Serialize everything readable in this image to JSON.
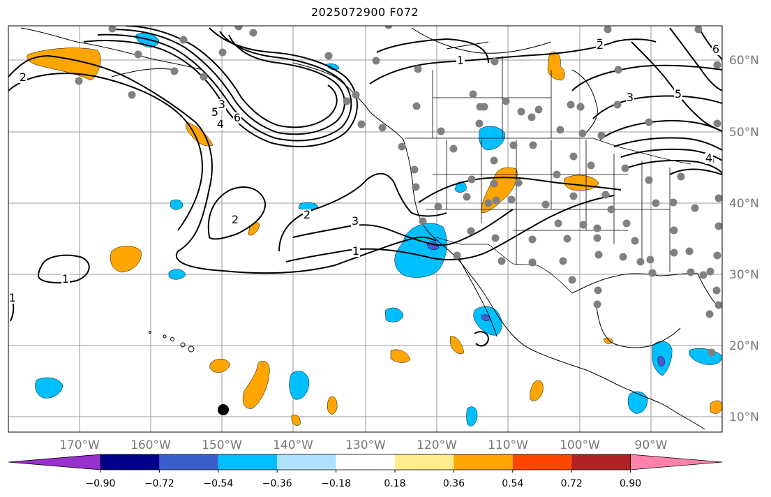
{
  "title": "2025072900 F072",
  "map": {
    "longitude_labels": [
      "170°W",
      "160°W",
      "150°W",
      "140°W",
      "130°W",
      "120°W",
      "110°W",
      "100°W",
      "90°W"
    ],
    "latitude_labels": [
      "60°N",
      "50°N",
      "40°N",
      "30°N",
      "20°N",
      "10°N"
    ],
    "contour_labels": [
      {
        "text": "2"
      },
      {
        "text": "1"
      },
      {
        "text": "1"
      },
      {
        "text": "2"
      },
      {
        "text": "3"
      },
      {
        "text": "4"
      },
      {
        "text": "5"
      },
      {
        "text": "6"
      },
      {
        "text": "2"
      },
      {
        "text": "2"
      },
      {
        "text": "3"
      },
      {
        "text": "1"
      },
      {
        "text": "1"
      },
      {
        "text": "2"
      },
      {
        "text": "3"
      },
      {
        "text": "5"
      },
      {
        "text": "4"
      },
      {
        "text": "6"
      }
    ],
    "colors": {
      "positive_shading": "#ffa500",
      "negative_shading": "#00bfff",
      "strong_negative": "#4a5bd0",
      "station_dot": "#808080",
      "marker": "#000000"
    }
  },
  "colorbar": {
    "tick_labels": [
      "−0.90",
      "−0.72",
      "−0.54",
      "−0.36",
      "−0.18",
      "0.18",
      "0.36",
      "0.54",
      "0.72",
      "0.90"
    ],
    "colors": [
      "#9932cc",
      "#00008b",
      "#3a5fcd",
      "#00bfff",
      "#b0e2ff",
      "#ffffff",
      "#ffec8b",
      "#ffa500",
      "#ff4500",
      "#b22222",
      "#ff82ab"
    ]
  }
}
